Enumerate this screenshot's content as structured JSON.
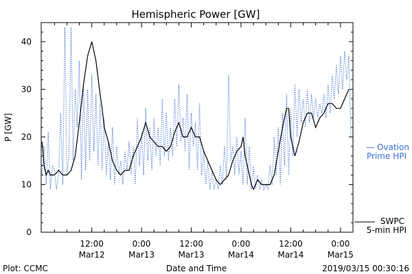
{
  "chart_data": {
    "type": "line",
    "title": "Hemispheric Power [GW]",
    "ylabel": "P [GW]",
    "xlabel": "Date and Time",
    "ylim": [
      0,
      44
    ],
    "y_ticks": [
      0,
      10,
      20,
      30,
      40
    ],
    "x_range": [
      -0.2,
      75.0
    ],
    "x_ticks": [
      {
        "x": 12,
        "label1": "12:00",
        "label2": "Mar12"
      },
      {
        "x": 24,
        "label1": "0:00",
        "label2": "Mar13"
      },
      {
        "x": 36,
        "label1": "12:00",
        "label2": "Mar13"
      },
      {
        "x": 48,
        "label1": "0:00",
        "label2": "Mar14"
      },
      {
        "x": 60,
        "label1": "12:00",
        "label2": "Mar14"
      },
      {
        "x": 72,
        "label1": "0:00",
        "label2": "Mar15"
      }
    ],
    "grid": false,
    "series": [
      {
        "name": "SWPC 5-min HPI",
        "legend_line1": "SWPC",
        "legend_line2": "5-min HPI",
        "color": "#000000",
        "style": "solid",
        "points": [
          [
            0,
            19
          ],
          [
            0.5,
            14
          ],
          [
            1,
            12
          ],
          [
            1.5,
            13
          ],
          [
            2,
            12
          ],
          [
            3,
            12
          ],
          [
            4,
            13
          ],
          [
            5,
            12
          ],
          [
            6,
            12
          ],
          [
            7,
            13
          ],
          [
            8,
            16
          ],
          [
            9,
            23
          ],
          [
            10,
            31
          ],
          [
            11,
            37
          ],
          [
            12,
            40
          ],
          [
            13,
            36
          ],
          [
            14,
            29
          ],
          [
            14.5,
            26
          ],
          [
            15,
            22
          ],
          [
            16,
            19
          ],
          [
            17,
            15
          ],
          [
            18,
            13
          ],
          [
            19,
            12
          ],
          [
            20,
            13
          ],
          [
            21,
            13
          ],
          [
            22,
            16
          ],
          [
            23,
            18
          ],
          [
            24,
            20
          ],
          [
            25,
            23
          ],
          [
            26,
            20
          ],
          [
            27,
            19
          ],
          [
            28,
            18
          ],
          [
            29,
            18
          ],
          [
            30,
            17
          ],
          [
            31,
            18
          ],
          [
            32,
            21
          ],
          [
            33,
            23
          ],
          [
            34,
            20
          ],
          [
            35,
            20
          ],
          [
            36,
            22
          ],
          [
            37,
            20
          ],
          [
            38,
            20
          ],
          [
            39,
            17
          ],
          [
            40,
            15
          ],
          [
            41,
            13
          ],
          [
            42,
            11
          ],
          [
            43,
            10
          ],
          [
            44,
            11
          ],
          [
            45,
            12
          ],
          [
            46,
            15
          ],
          [
            47,
            17
          ],
          [
            48,
            18
          ],
          [
            48.5,
            20
          ],
          [
            49,
            16
          ],
          [
            50,
            12
          ],
          [
            50.5,
            10
          ],
          [
            51,
            9
          ],
          [
            52,
            11
          ],
          [
            53,
            10
          ],
          [
            54,
            10
          ],
          [
            55,
            10
          ],
          [
            56,
            12
          ],
          [
            57,
            17
          ],
          [
            58,
            22
          ],
          [
            59,
            26
          ],
          [
            59.5,
            26
          ],
          [
            60,
            20
          ],
          [
            61,
            16
          ],
          [
            62,
            19
          ],
          [
            63,
            23
          ],
          [
            64,
            25
          ],
          [
            65,
            25
          ],
          [
            66,
            22
          ],
          [
            67,
            24
          ],
          [
            68,
            25
          ],
          [
            69,
            27
          ],
          [
            70,
            27
          ],
          [
            71,
            26
          ],
          [
            72,
            26
          ],
          [
            73,
            28
          ],
          [
            74,
            30
          ]
        ]
      },
      {
        "name": "Ovation Prime HPI",
        "legend_line1": "— Ovation",
        "legend_line2": "Prime HPI",
        "color": "#3a6fd0",
        "style": "dotted",
        "points": [
          [
            0,
            12
          ],
          [
            0.5,
            18
          ],
          [
            1,
            10
          ],
          [
            1.5,
            21
          ],
          [
            2,
            9
          ],
          [
            2.5,
            14
          ],
          [
            3,
            13
          ],
          [
            3.5,
            9
          ],
          [
            4,
            12
          ],
          [
            4.5,
            25
          ],
          [
            5,
            10
          ],
          [
            5.5,
            43
          ],
          [
            6,
            12
          ],
          [
            6.5,
            16
          ],
          [
            7,
            43
          ],
          [
            7.5,
            15
          ],
          [
            8,
            30
          ],
          [
            8.5,
            22
          ],
          [
            9,
            36
          ],
          [
            9.5,
            11
          ],
          [
            10,
            31
          ],
          [
            10.5,
            13
          ],
          [
            11,
            30
          ],
          [
            11.5,
            15
          ],
          [
            12,
            33
          ],
          [
            12.5,
            17
          ],
          [
            13,
            29
          ],
          [
            13.5,
            14
          ],
          [
            14,
            27
          ],
          [
            14.5,
            13
          ],
          [
            15,
            24
          ],
          [
            15.5,
            12
          ],
          [
            16,
            19
          ],
          [
            16.5,
            11
          ],
          [
            17,
            22
          ],
          [
            17.5,
            10
          ],
          [
            18,
            18
          ],
          [
            18.5,
            12
          ],
          [
            19,
            15
          ],
          [
            19.5,
            10
          ],
          [
            20,
            17
          ],
          [
            20.5,
            13
          ],
          [
            21,
            19
          ],
          [
            21.5,
            12
          ],
          [
            22,
            18
          ],
          [
            22.5,
            10
          ],
          [
            23,
            24
          ],
          [
            23.5,
            14
          ],
          [
            24,
            21
          ],
          [
            24.5,
            12
          ],
          [
            25,
            26
          ],
          [
            25.5,
            15
          ],
          [
            26,
            22
          ],
          [
            26.5,
            13
          ],
          [
            27,
            24
          ],
          [
            27.5,
            16
          ],
          [
            28,
            22
          ],
          [
            28.5,
            14
          ],
          [
            29,
            28
          ],
          [
            29.5,
            16
          ],
          [
            30,
            25
          ],
          [
            30.5,
            15
          ],
          [
            31,
            22
          ],
          [
            31.5,
            16
          ],
          [
            32,
            28
          ],
          [
            32.5,
            18
          ],
          [
            33,
            31
          ],
          [
            33.5,
            19
          ],
          [
            34,
            24
          ],
          [
            34.5,
            17
          ],
          [
            35,
            29
          ],
          [
            35.5,
            13
          ],
          [
            36,
            25
          ],
          [
            36.5,
            18
          ],
          [
            37,
            23
          ],
          [
            37.5,
            13
          ],
          [
            38,
            27
          ],
          [
            38.5,
            12
          ],
          [
            39,
            17
          ],
          [
            39.5,
            10
          ],
          [
            40,
            15
          ],
          [
            40.5,
            9
          ],
          [
            41,
            13
          ],
          [
            41.5,
            9
          ],
          [
            42,
            11
          ],
          [
            42.5,
            9
          ],
          [
            43,
            14
          ],
          [
            43.5,
            10
          ],
          [
            44,
            18
          ],
          [
            44.5,
            11
          ],
          [
            45,
            33
          ],
          [
            45.5,
            15
          ],
          [
            46,
            18
          ],
          [
            46.5,
            12
          ],
          [
            47,
            20
          ],
          [
            47.5,
            12
          ],
          [
            48,
            17
          ],
          [
            48.5,
            10
          ],
          [
            49,
            24
          ],
          [
            49.5,
            10
          ],
          [
            50,
            18
          ],
          [
            50.5,
            9
          ],
          [
            51,
            14
          ],
          [
            51.5,
            9
          ],
          [
            52,
            12
          ],
          [
            52.5,
            9
          ],
          [
            53,
            11
          ],
          [
            53.5,
            9
          ],
          [
            54,
            10
          ],
          [
            54.5,
            9
          ],
          [
            55,
            14
          ],
          [
            55.5,
            10
          ],
          [
            56,
            20
          ],
          [
            56.5,
            12
          ],
          [
            57,
            22
          ],
          [
            57.5,
            10
          ],
          [
            58,
            25
          ],
          [
            58.5,
            14
          ],
          [
            59,
            29
          ],
          [
            59.5,
            12
          ],
          [
            60,
            26
          ],
          [
            60.5,
            16
          ],
          [
            61,
            31
          ],
          [
            61.5,
            20
          ],
          [
            62,
            30
          ],
          [
            62.5,
            23
          ],
          [
            63,
            28
          ],
          [
            63.5,
            22
          ],
          [
            64,
            30
          ],
          [
            64.5,
            23
          ],
          [
            65,
            29
          ],
          [
            65.5,
            24
          ],
          [
            66,
            28
          ],
          [
            66.5,
            24
          ],
          [
            67,
            27
          ],
          [
            67.5,
            25
          ],
          [
            68,
            29
          ],
          [
            68.5,
            24
          ],
          [
            69,
            31
          ],
          [
            69.5,
            25
          ],
          [
            70,
            33
          ],
          [
            70.5,
            28
          ],
          [
            71,
            35
          ],
          [
            71.5,
            29
          ],
          [
            72,
            37
          ],
          [
            72.5,
            30
          ],
          [
            73,
            38
          ],
          [
            73.5,
            32
          ],
          [
            74,
            37
          ],
          [
            74.5,
            20
          ]
        ]
      }
    ]
  },
  "footer": {
    "left": "Plot: CCMC",
    "center": "Date and Time",
    "right": "2019/03/15 00:30:16"
  }
}
